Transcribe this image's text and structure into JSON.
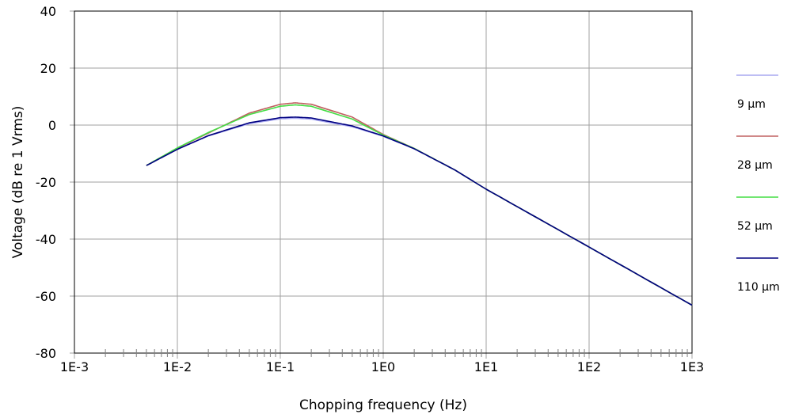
{
  "chart_data": {
    "type": "line",
    "xscale": "log",
    "xlim": [
      0.001,
      1000
    ],
    "ylim": [
      -80,
      40
    ],
    "xlabel": "Chopping frequency (Hz)",
    "ylabel": "Voltage (dB re 1 Vrms)",
    "x_tick_labels": [
      "1E-3",
      "1E-2",
      "1E-1",
      "1E0",
      "1E1",
      "1E2",
      "1E3"
    ],
    "y_ticks": [
      40,
      20,
      0,
      -20,
      -40,
      -60,
      -80
    ],
    "grid": true,
    "legend_position": "right",
    "x": [
      0.005,
      0.01,
      0.02,
      0.05,
      0.1,
      0.14,
      0.2,
      0.5,
      1,
      2,
      5,
      10,
      100,
      1000
    ],
    "series": [
      {
        "name": "9 µm",
        "color": "#a8a8f0",
        "values": [
          -14.2,
          -8.5,
          -3.8,
          0.5,
          2.2,
          2.4,
          2.1,
          -0.6,
          -3.9,
          -8.3,
          -15.8,
          -22.5,
          -42.8,
          -63.2
        ]
      },
      {
        "name": "28 µm",
        "color": "#c06060",
        "values": [
          -14.2,
          -8.1,
          -2.8,
          4.2,
          7.3,
          7.8,
          7.3,
          2.8,
          -3.3,
          -8.2,
          -15.8,
          -22.5,
          -42.8,
          -63.2
        ]
      },
      {
        "name": "52 µm",
        "color": "#44dd44",
        "values": [
          -14.2,
          -8.0,
          -2.6,
          3.7,
          6.6,
          7.1,
          6.6,
          2.1,
          -3.5,
          -8.2,
          -15.8,
          -22.5,
          -42.8,
          -63.2
        ]
      },
      {
        "name": "110 µm",
        "color": "#000080",
        "values": [
          -14.2,
          -8.5,
          -3.7,
          0.8,
          2.6,
          2.8,
          2.5,
          -0.3,
          -3.8,
          -8.3,
          -15.8,
          -22.5,
          -42.8,
          -63.2
        ]
      }
    ]
  }
}
